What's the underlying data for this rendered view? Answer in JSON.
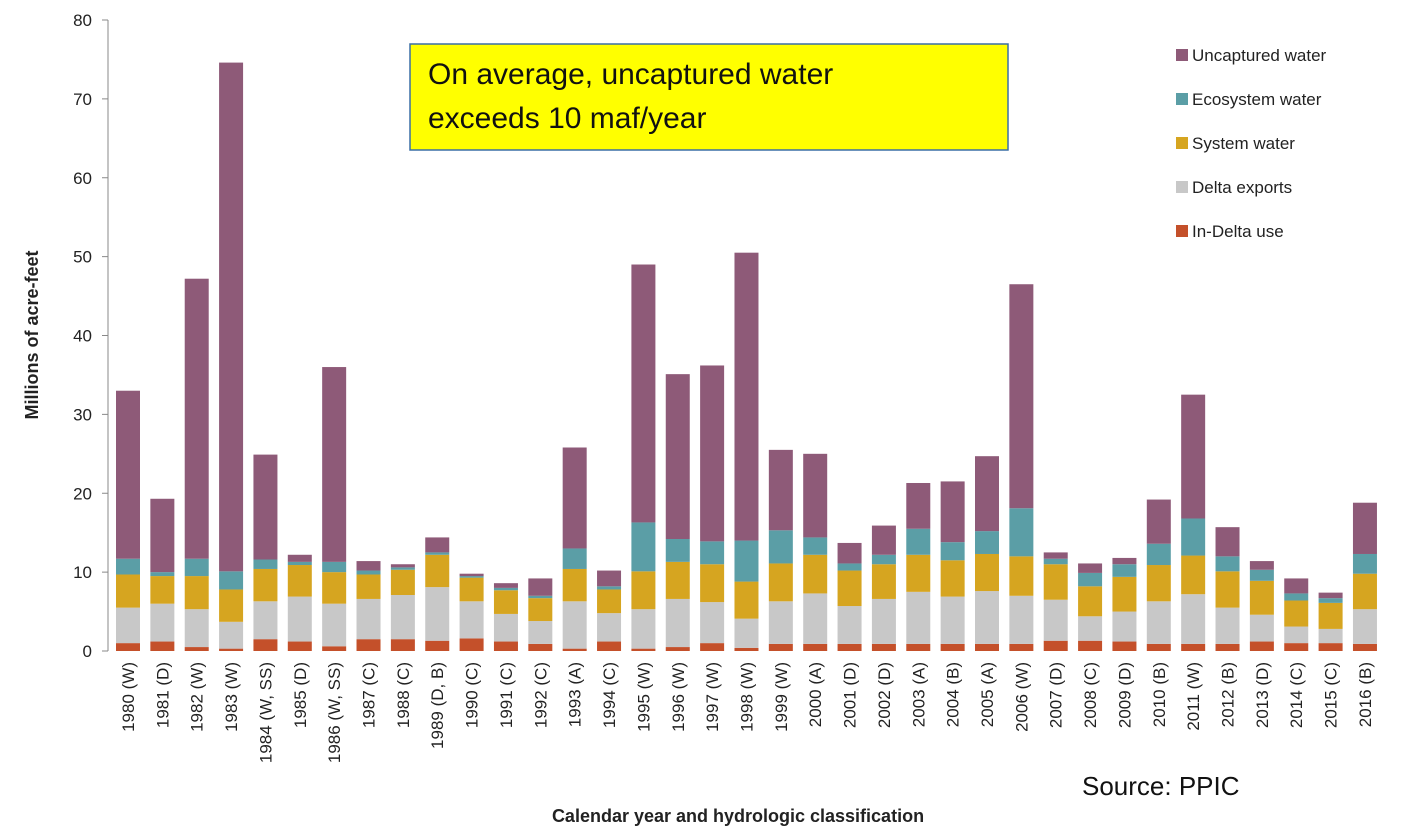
{
  "chart_data": {
    "type": "stacked_bar",
    "y_label": "Millions of acre-feet",
    "x_label": "Calendar year and hydrologic classification",
    "annotation": [
      "On average, uncaptured water",
      "exceeds 10 maf/year"
    ],
    "source": "Source: PPIC",
    "categories": [
      "1980 (W)",
      "1981 (D)",
      "1982 (W)",
      "1983 (W)",
      "1984 (W, SS)",
      "1985 (D)",
      "1986 (W, SS)",
      "1987 (C)",
      "1988 (C)",
      "1989 (D, B)",
      "1990 (C)",
      "1991 (C)",
      "1992 (C)",
      "1993 (A)",
      "1994 (C)",
      "1995 (W)",
      "1996 (W)",
      "1997 (W)",
      "1998 (W)",
      "1999 (W)",
      "2000 (A)",
      "2001 (D)",
      "2002 (D)",
      "2003 (A)",
      "2004 (B)",
      "2005 (A)",
      "2006 (W)",
      "2007 (D)",
      "2008 (C)",
      "2009 (D)",
      "2010 (B)",
      "2011 (W)",
      "2012 (B)",
      "2013 (D)",
      "2014 (C)",
      "2015 (C)",
      "2016 (B)"
    ],
    "series": [
      {
        "name": "In-Delta use",
        "color": "#c4502a",
        "values": [
          1,
          1.2,
          0.5,
          0.3,
          1.5,
          1.2,
          0.6,
          1.5,
          1.5,
          1.3,
          1.6,
          1.2,
          0.9,
          0.3,
          1.2,
          0.3,
          0.5,
          1,
          0.4,
          0.9,
          0.9,
          0.9,
          0.9,
          0.9,
          0.9,
          0.9,
          0.9,
          1.3,
          1.3,
          1.2,
          0.9,
          0.9,
          0.9,
          1.2,
          1,
          1,
          0.9
        ]
      },
      {
        "name": "Delta exports",
        "color": "#c8c8c8",
        "values": [
          4.5,
          4.8,
          4.8,
          3.4,
          4.8,
          5.7,
          5.4,
          5.1,
          5.6,
          6.8,
          4.7,
          3.5,
          2.9,
          6,
          3.6,
          5,
          6.1,
          5.2,
          3.7,
          5.4,
          6.4,
          4.8,
          5.7,
          6.6,
          6,
          6.7,
          6.1,
          5.2,
          3.1,
          3.8,
          5.4,
          6.3,
          4.6,
          3.4,
          2.1,
          1.8,
          4.4
        ]
      },
      {
        "name": "System water",
        "color": "#d6a520",
        "values": [
          4.2,
          3.5,
          4.2,
          4.1,
          4.1,
          4,
          4,
          3.1,
          3.2,
          4.1,
          3,
          3,
          2.9,
          4.1,
          3,
          4.8,
          4.7,
          4.8,
          4.7,
          4.8,
          4.9,
          4.5,
          4.4,
          4.7,
          4.6,
          4.7,
          5,
          4.5,
          3.8,
          4.4,
          4.6,
          4.9,
          4.6,
          4.3,
          3.3,
          3.3,
          4.5
        ]
      },
      {
        "name": "Ecosystem water",
        "color": "#5b9ea6",
        "values": [
          2,
          0.5,
          2.2,
          2.3,
          1.2,
          0.4,
          1.3,
          0.5,
          0.3,
          0.3,
          0.2,
          0.3,
          0.3,
          2.6,
          0.4,
          6.2,
          2.9,
          2.9,
          5.2,
          4.2,
          2.2,
          0.9,
          1.2,
          3.3,
          2.3,
          2.9,
          6.1,
          0.7,
          1.7,
          1.6,
          2.7,
          4.7,
          1.9,
          1.4,
          0.9,
          0.6,
          2.5
        ]
      },
      {
        "name": "Uncaptured water",
        "color": "#8e5a78",
        "values": [
          21.3,
          9.3,
          35.5,
          64.5,
          13.3,
          0.9,
          24.7,
          1.2,
          0.4,
          1.9,
          0.3,
          0.6,
          2.2,
          12.8,
          2,
          32.7,
          20.9,
          22.3,
          36.5,
          10.2,
          10.6,
          2.6,
          3.7,
          5.8,
          7.7,
          9.5,
          28.4,
          0.8,
          1.2,
          0.8,
          5.6,
          15.7,
          3.7,
          1.1,
          1.9,
          0.7,
          6.5
        ]
      }
    ],
    "ylim": [
      0,
      80
    ],
    "yticks": [
      0,
      10,
      20,
      30,
      40,
      50,
      60,
      70,
      80
    ]
  }
}
